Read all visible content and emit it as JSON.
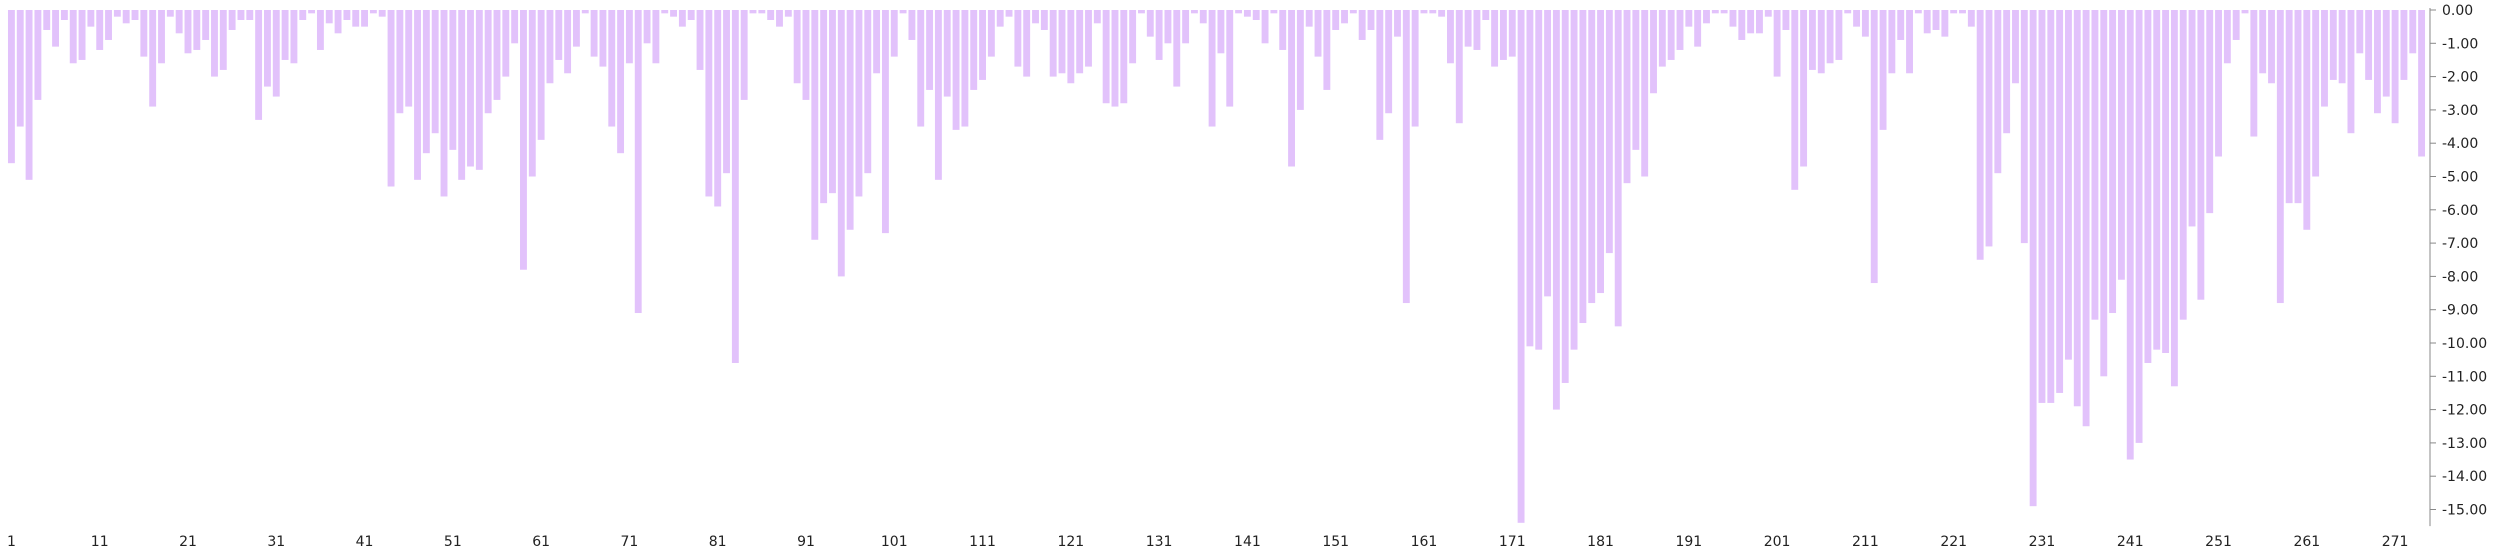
{
  "chart_data": {
    "type": "bar",
    "title": "",
    "xlabel": "",
    "ylabel": "",
    "ylim": [
      -15.5,
      0
    ],
    "y_ticks": [
      "0.00",
      "-1.00",
      "-2.00",
      "-3.00",
      "-4.00",
      "-5.00",
      "-6.00",
      "-7.00",
      "-8.00",
      "-9.00",
      "-10.00",
      "-11.00",
      "-12.00",
      "-13.00",
      "-14.00",
      "-15.00"
    ],
    "x_ticks": [
      "1",
      "11",
      "21",
      "31",
      "41",
      "51",
      "61",
      "71",
      "81",
      "91",
      "101",
      "111",
      "121",
      "131",
      "141",
      "151",
      "161",
      "171",
      "181",
      "191",
      "201",
      "211",
      "221",
      "231",
      "241",
      "251",
      "261",
      "271"
    ],
    "grid": false,
    "bar_color": "#e2c2fb",
    "values": [
      -4.6,
      -3.5,
      -5.1,
      -2.7,
      -0.6,
      -1.1,
      -0.3,
      -1.6,
      -1.5,
      -0.5,
      -1.2,
      -0.9,
      -0.2,
      -0.4,
      -0.3,
      -1.4,
      -2.9,
      -1.6,
      -0.2,
      -0.7,
      -1.3,
      -1.2,
      -0.9,
      -2.0,
      -1.8,
      -0.6,
      -0.3,
      -0.3,
      -3.3,
      -2.3,
      -2.6,
      -1.5,
      -1.6,
      -0.3,
      -0.1,
      -1.2,
      -0.4,
      -0.7,
      -0.3,
      -0.5,
      -0.5,
      -0.1,
      -0.2,
      -5.3,
      -3.1,
      -2.9,
      -5.1,
      -4.3,
      -3.7,
      -5.6,
      -4.2,
      -5.1,
      -4.7,
      -4.8,
      -3.1,
      -2.7,
      -2.0,
      -1.0,
      -7.8,
      -5.0,
      -3.9,
      -2.2,
      -1.5,
      -1.9,
      -1.1,
      -0.1,
      -1.4,
      -1.7,
      -3.5,
      -4.3,
      -1.6,
      -9.1,
      -1.0,
      -1.6,
      -0.1,
      -0.2,
      -0.5,
      -0.3,
      -1.8,
      -5.6,
      -5.9,
      -4.9,
      -10.6,
      -2.7,
      -0.1,
      -0.1,
      -0.3,
      -0.5,
      -0.2,
      -2.2,
      -2.7,
      -6.9,
      -5.8,
      -5.5,
      -8.0,
      -6.6,
      -5.6,
      -4.9,
      -1.9,
      -6.7,
      -1.4,
      -0.1,
      -0.9,
      -3.5,
      -2.4,
      -5.1,
      -2.6,
      -3.6,
      -3.5,
      -2.4,
      -2.1,
      -1.4,
      -0.5,
      -0.2,
      -1.7,
      -2.0,
      -0.4,
      -0.6,
      -2.0,
      -1.9,
      -2.2,
      -1.9,
      -1.7,
      -0.4,
      -2.8,
      -2.9,
      -2.8,
      -1.6,
      -0.1,
      -0.8,
      -1.5,
      -1.0,
      -2.3,
      -1.0,
      -0.1,
      -0.4,
      -3.5,
      -1.3,
      -2.9,
      -0.1,
      -0.2,
      -0.3,
      -1.0,
      -0.1,
      -1.2,
      -4.7,
      -3.0,
      -0.5,
      -1.4,
      -2.4,
      -0.6,
      -0.4,
      -0.1,
      -0.9,
      -0.6,
      -3.9,
      -3.1,
      -0.8,
      -8.8,
      -3.5,
      -0.1,
      -0.1,
      -0.2,
      -1.6,
      -3.4,
      -1.1,
      -1.2,
      -0.3,
      -1.7,
      -1.5,
      -1.4,
      -15.4,
      -10.1,
      -10.2,
      -8.6,
      -12.0,
      -11.2,
      -10.2,
      -9.4,
      -8.8,
      -8.5,
      -7.3,
      -9.5,
      -5.2,
      -4.2,
      -5.0,
      -2.5,
      -1.7,
      -1.5,
      -1.2,
      -0.5,
      -1.1,
      -0.4,
      -0.1,
      -0.1,
      -0.5,
      -0.9,
      -0.7,
      -0.7,
      -0.2,
      -2.0,
      -0.6,
      -5.4,
      -4.7,
      -1.8,
      -1.9,
      -1.6,
      -1.5,
      -0.1,
      -0.5,
      -0.8,
      -8.2,
      -3.6,
      -1.9,
      -0.9,
      -1.9,
      -0.1,
      -0.7,
      -0.6,
      -0.8,
      -0.1,
      -0.1,
      -0.5,
      -7.5,
      -7.1,
      -4.9,
      -3.7,
      -2.2,
      -7.0,
      -14.9,
      -11.8,
      -11.8,
      -11.5,
      -10.5,
      -11.9,
      -12.5,
      -9.3,
      -11.0,
      -9.1,
      -8.1,
      -13.5,
      -13.0,
      -10.6,
      -10.2,
      -10.3,
      -11.3,
      -9.3,
      -6.5,
      -8.7,
      -6.1,
      -4.4,
      -1.6,
      -0.9,
      -0.1,
      -3.8,
      -1.9,
      -2.2,
      -8.8,
      -5.8,
      -5.8,
      -6.6,
      -5.0,
      -2.9,
      -2.1,
      -2.2,
      -3.7,
      -1.3,
      -2.1,
      -3.1,
      -2.6,
      -3.4,
      -2.1,
      -1.3,
      -4.4
    ]
  }
}
